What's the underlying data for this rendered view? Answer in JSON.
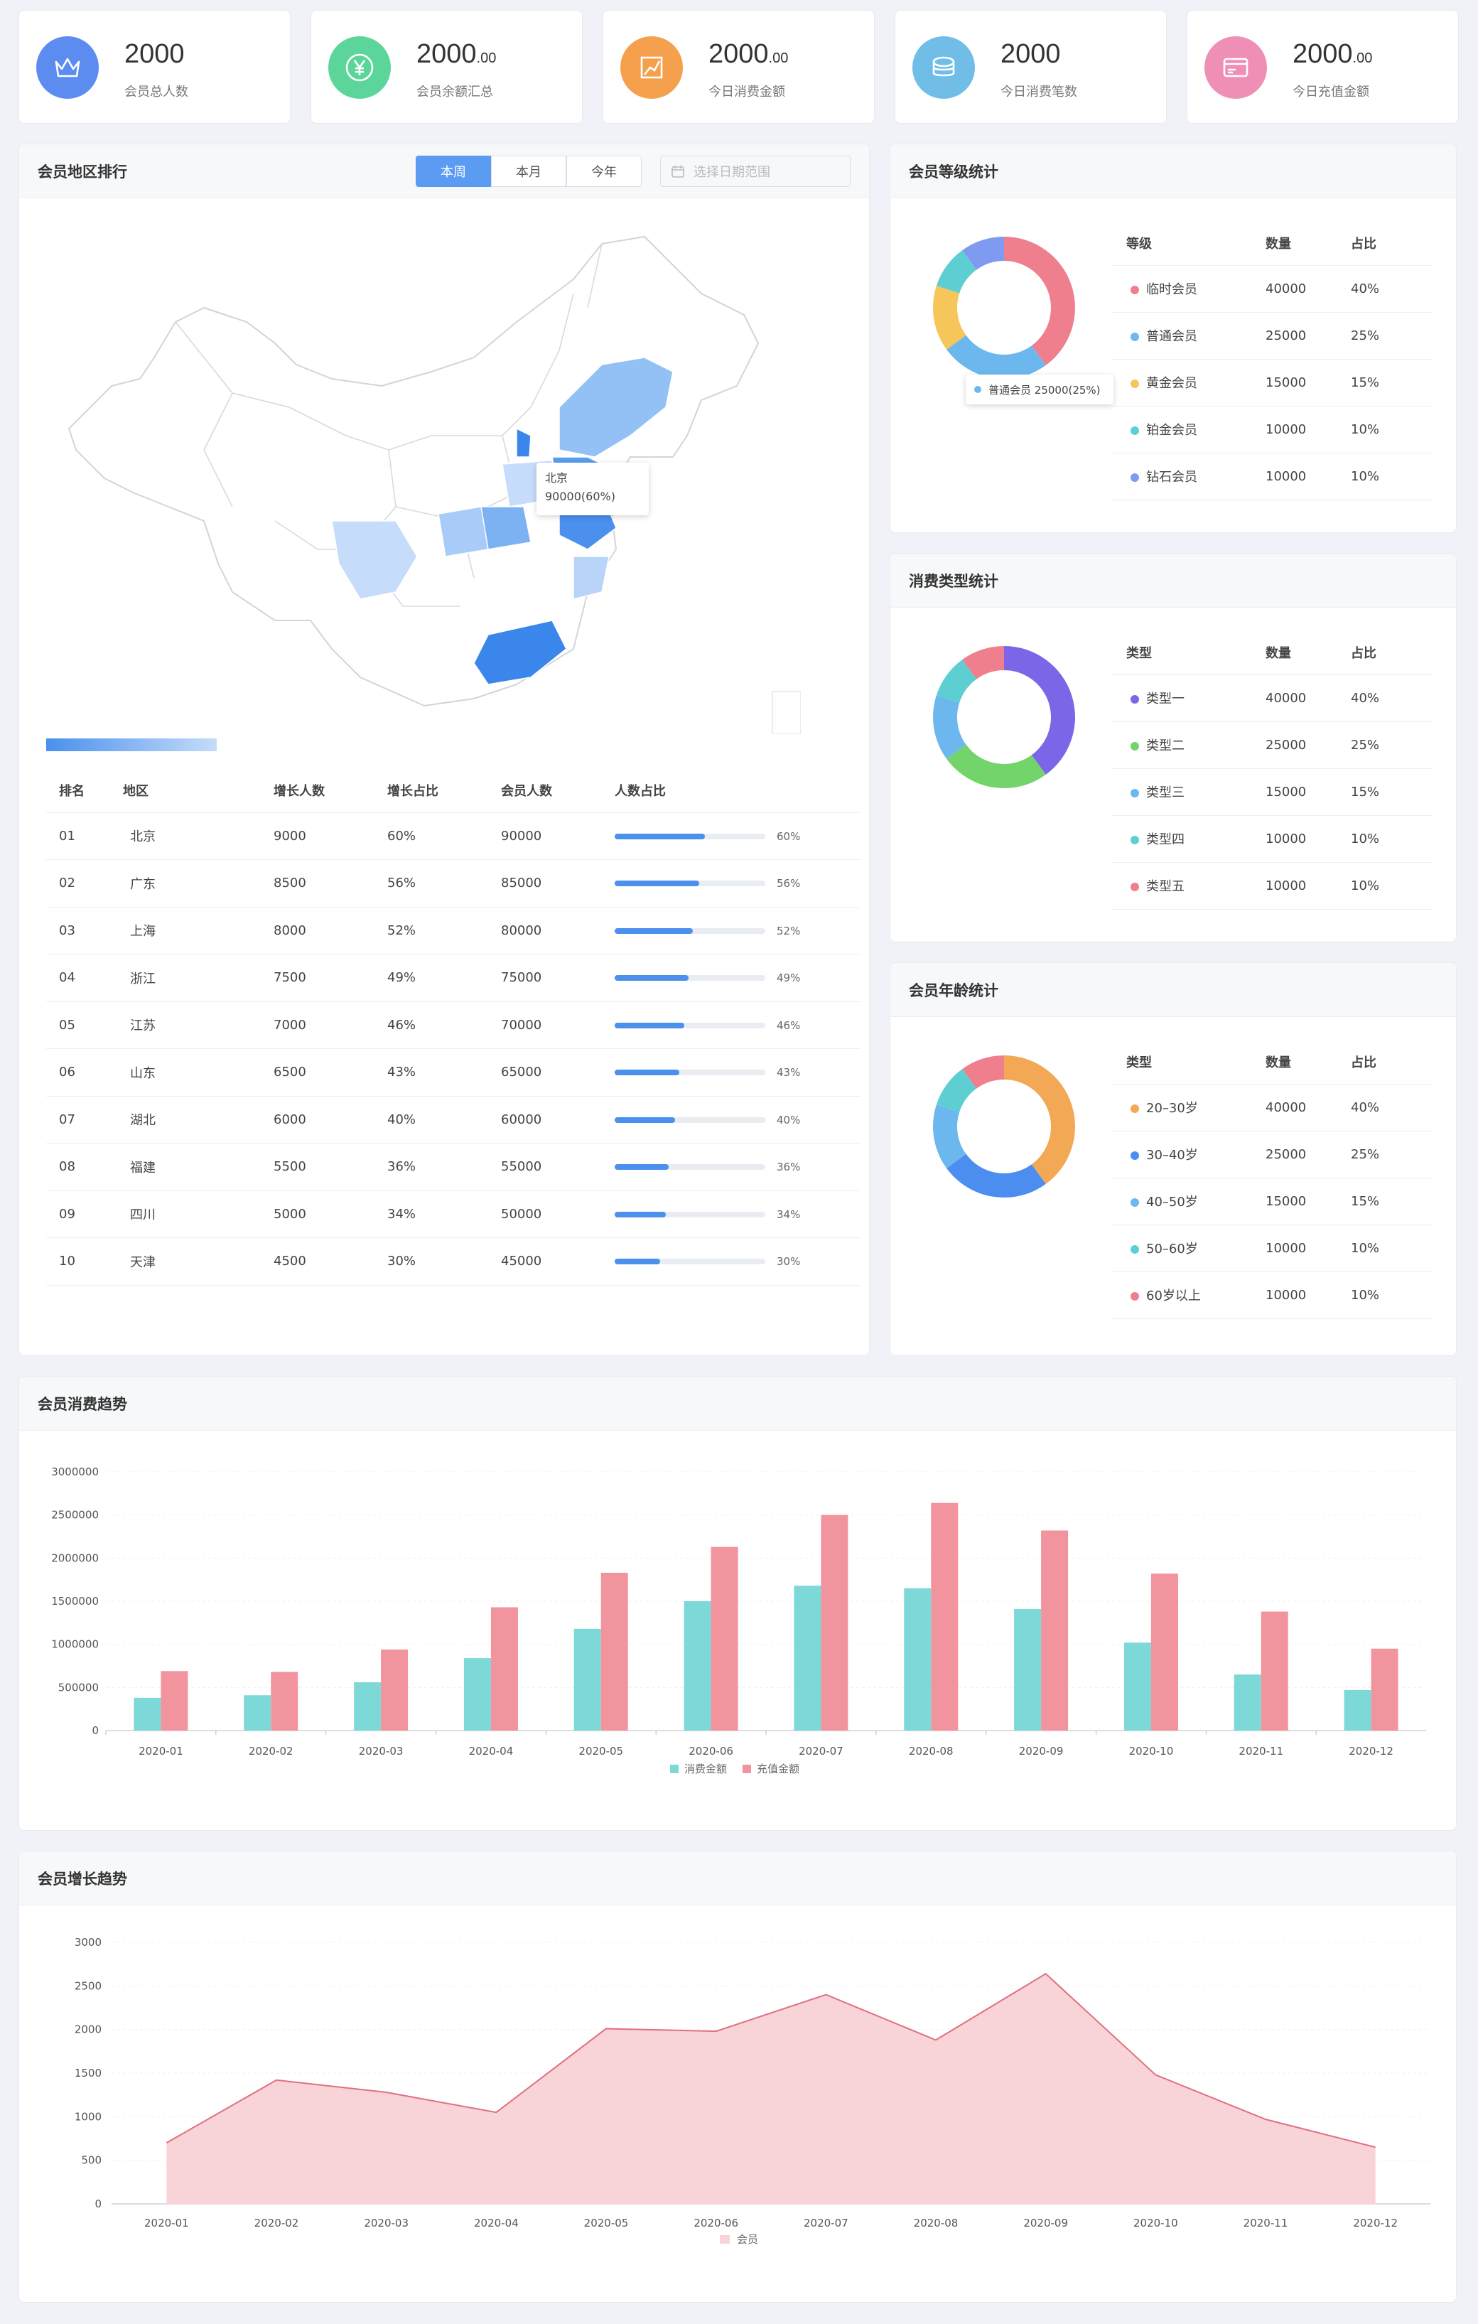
{
  "stats": [
    {
      "value": "2000",
      "cents": "",
      "label": "会员总人数",
      "color": "#5d8cf1",
      "icon": "crown-icon"
    },
    {
      "value": "2000",
      "cents": ".00",
      "label": "会员余额汇总",
      "color": "#5cd59a",
      "icon": "yen-icon"
    },
    {
      "value": "2000",
      "cents": ".00",
      "label": "今日消费金额",
      "color": "#f5a04c",
      "icon": "chart-icon"
    },
    {
      "value": "2000",
      "cents": "",
      "label": "今日消费笔数",
      "color": "#70bde8",
      "icon": "coins-icon"
    },
    {
      "value": "2000",
      "cents": ".00",
      "label": "今日充值金额",
      "color": "#f08fb6",
      "icon": "card-icon"
    }
  ],
  "region": {
    "title": "会员地区排行",
    "tabs": [
      "本周",
      "本月",
      "今年"
    ],
    "date_placeholder": "选择日期范围",
    "tooltip_name": "北京",
    "tooltip_value": "90000(60%)",
    "columns": [
      "排名",
      "地区",
      "增长人数",
      "增长占比",
      "会员人数",
      "人数占比"
    ],
    "rows": [
      [
        "01",
        "北京",
        "9000",
        "60%",
        "90000",
        60
      ],
      [
        "02",
        "广东",
        "8500",
        "56%",
        "85000",
        56
      ],
      [
        "03",
        "上海",
        "8000",
        "52%",
        "80000",
        52
      ],
      [
        "04",
        "浙江",
        "7500",
        "49%",
        "75000",
        49
      ],
      [
        "05",
        "江苏",
        "7000",
        "46%",
        "70000",
        46
      ],
      [
        "06",
        "山东",
        "6500",
        "43%",
        "65000",
        43
      ],
      [
        "07",
        "湖北",
        "6000",
        "40%",
        "60000",
        40
      ],
      [
        "08",
        "福建",
        "5500",
        "36%",
        "55000",
        36
      ],
      [
        "09",
        "四川",
        "5000",
        "34%",
        "50000",
        34
      ],
      [
        "10",
        "天津",
        "4500",
        "30%",
        "45000",
        30
      ]
    ]
  },
  "donuts": [
    {
      "title": "会员等级统计",
      "columns": [
        "等级",
        "数量",
        "占比"
      ],
      "rows": [
        [
          "临时会员",
          "40000",
          "40%",
          "#ef7f8c"
        ],
        [
          "普通会员",
          "25000",
          "25%",
          "#6cb8ee"
        ],
        [
          "黄金会员",
          "15000",
          "15%",
          "#f6c65b"
        ],
        [
          "铂金会员",
          "10000",
          "10%",
          "#5dcfd2"
        ],
        [
          "钻石会员",
          "10000",
          "10%",
          "#7e9af1"
        ]
      ],
      "values": [
        40,
        25,
        15,
        10,
        10
      ],
      "tooltip": "普通会员  25000(25%)",
      "tooltip_color": "#6cb8ee"
    },
    {
      "title": "消费类型统计",
      "columns": [
        "类型",
        "数量",
        "占比"
      ],
      "rows": [
        [
          "类型一",
          "40000",
          "40%",
          "#7c66e8"
        ],
        [
          "类型二",
          "25000",
          "25%",
          "#72d46a"
        ],
        [
          "类型三",
          "15000",
          "15%",
          "#6cb8ee"
        ],
        [
          "类型四",
          "10000",
          "10%",
          "#5dcfd2"
        ],
        [
          "类型五",
          "10000",
          "10%",
          "#ef7f8c"
        ]
      ],
      "values": [
        40,
        25,
        15,
        10,
        10
      ]
    },
    {
      "title": "会员年龄统计",
      "columns": [
        "类型",
        "数量",
        "占比"
      ],
      "rows": [
        [
          "20–30岁",
          "40000",
          "40%",
          "#f2a854"
        ],
        [
          "30–40岁",
          "25000",
          "25%",
          "#4b8ef0"
        ],
        [
          "40–50岁",
          "15000",
          "15%",
          "#6cb8ee"
        ],
        [
          "50–60岁",
          "10000",
          "10%",
          "#5dcfd2"
        ],
        [
          "60岁以上",
          "10000",
          "10%",
          "#ef7f8c"
        ]
      ],
      "values": [
        40,
        25,
        15,
        10,
        10
      ]
    }
  ],
  "consume": {
    "title": "会员消费趋势"
  },
  "growth": {
    "title": "会员增长趋势"
  },
  "chart_data": [
    {
      "type": "bar",
      "categories": [
        "2020-01",
        "2020-02",
        "2020-03",
        "2020-04",
        "2020-05",
        "2020-06",
        "2020-07",
        "2020-08",
        "2020-09",
        "2020-10",
        "2020-11",
        "2020-12"
      ],
      "series": [
        {
          "name": "消费金额",
          "color": "#7dd8d8",
          "values": [
            380000,
            410000,
            560000,
            840000,
            1180000,
            1500000,
            1680000,
            1650000,
            1410000,
            1020000,
            650000,
            470000
          ]
        },
        {
          "name": "充值金额",
          "color": "#f2949e",
          "values": [
            690000,
            680000,
            940000,
            1430000,
            1830000,
            2130000,
            2500000,
            2640000,
            2320000,
            1820000,
            1380000,
            950000
          ]
        }
      ],
      "yticks": [
        "0",
        "500000",
        "1000000",
        "1500000",
        "2000000",
        "2500000",
        "3000000"
      ],
      "ylim": [
        0,
        3000000
      ]
    },
    {
      "type": "area",
      "categories": [
        "2020-01",
        "2020-02",
        "2020-03",
        "2020-04",
        "2020-05",
        "2020-06",
        "2020-07",
        "2020-08",
        "2020-09",
        "2020-10",
        "2020-11",
        "2020-12"
      ],
      "series": [
        {
          "name": "会员",
          "color": "#e0707e",
          "fill": "#f8d3d8",
          "values": [
            700,
            1420,
            1280,
            1050,
            2010,
            1980,
            2400,
            1880,
            2640,
            1480,
            970,
            650
          ]
        }
      ],
      "yticks": [
        "0",
        "500",
        "1000",
        "1500",
        "2000",
        "2500",
        "3000"
      ],
      "ylim": [
        0,
        3000
      ]
    }
  ]
}
